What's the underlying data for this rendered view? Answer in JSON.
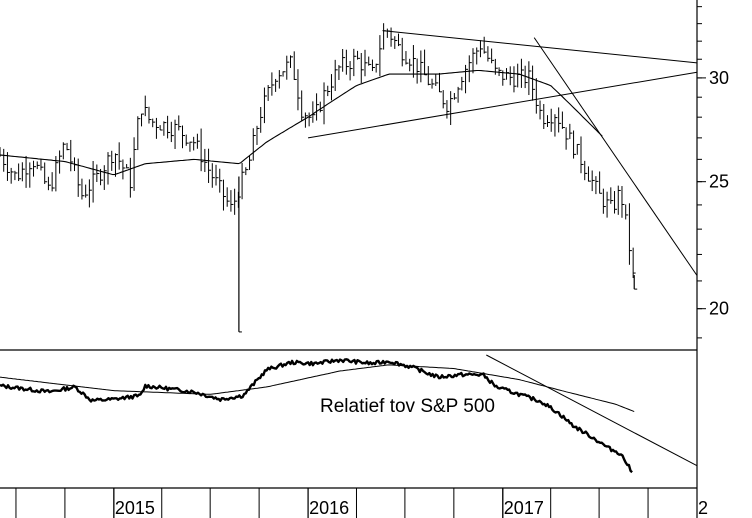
{
  "chart_data": [
    {
      "type": "ohlc",
      "panel": "price",
      "title": "",
      "y_scale": "log",
      "ylim": [
        18.6,
        34.4
      ],
      "xlim": [
        "2014-06-01",
        "2018-01-01"
      ],
      "grid": false,
      "y_ticks": [
        {
          "value": 20,
          "label": "20"
        },
        {
          "value": 25,
          "label": "25"
        },
        {
          "value": 30,
          "label": "30"
        }
      ],
      "x_ticks": [
        {
          "date": "2015-01-01",
          "label": "2015"
        },
        {
          "date": "2016-01-01",
          "label": "2016"
        },
        {
          "date": "2017-01-01",
          "label": "2017"
        },
        {
          "date": "2018-01-01",
          "label": "2"
        }
      ],
      "weekly_close_anchors": [
        [
          "2014-06-01",
          26.2
        ],
        [
          "2014-07-01",
          25.2
        ],
        [
          "2014-08-01",
          26.0
        ],
        [
          "2014-09-01",
          24.6
        ],
        [
          "2014-10-01",
          26.8
        ],
        [
          "2014-11-01",
          24.4
        ],
        [
          "2014-12-01",
          25.2
        ],
        [
          "2015-01-01",
          26.4
        ],
        [
          "2015-02-01",
          25.0
        ],
        [
          "2015-02-20",
          28.6
        ],
        [
          "2015-03-10",
          27.8
        ],
        [
          "2015-04-10",
          27.6
        ],
        [
          "2015-05-01",
          27.4
        ],
        [
          "2015-06-01",
          26.8
        ],
        [
          "2015-07-01",
          25.4
        ],
        [
          "2015-08-10",
          23.8
        ],
        [
          "2015-08-25",
          24.8
        ],
        [
          "2015-09-10",
          25.6
        ],
        [
          "2015-10-01",
          28.0
        ],
        [
          "2015-11-01",
          30.2
        ],
        [
          "2015-12-01",
          30.8
        ],
        [
          "2015-12-20",
          28.4
        ],
        [
          "2016-01-10",
          27.8
        ],
        [
          "2016-02-01",
          29.2
        ],
        [
          "2016-03-01",
          30.6
        ],
        [
          "2016-04-01",
          31.0
        ],
        [
          "2016-05-01",
          30.2
        ],
        [
          "2016-05-25",
          32.8
        ],
        [
          "2016-06-20",
          31.6
        ],
        [
          "2016-07-20",
          30.8
        ],
        [
          "2016-08-20",
          29.6
        ],
        [
          "2016-09-20",
          28.6
        ],
        [
          "2016-10-20",
          30.4
        ],
        [
          "2016-11-20",
          31.8
        ],
        [
          "2016-12-20",
          30.2
        ],
        [
          "2017-01-20",
          30.0
        ],
        [
          "2017-02-20",
          30.0
        ],
        [
          "2017-03-15",
          28.0
        ],
        [
          "2017-04-10",
          28.2
        ],
        [
          "2017-05-01",
          27.2
        ],
        [
          "2017-06-01",
          25.8
        ],
        [
          "2017-07-01",
          24.4
        ],
        [
          "2017-07-25",
          23.8
        ],
        [
          "2017-08-10",
          24.6
        ],
        [
          "2017-08-25",
          22.6
        ],
        [
          "2017-09-05",
          20.8
        ]
      ],
      "intraday_spike_lows": [
        {
          "date": "2015-08-24",
          "low": 19.2
        },
        {
          "date": "2017-09-05",
          "low": 20.7
        }
      ],
      "moving_average_anchors": [
        [
          "2014-06-01",
          26.2
        ],
        [
          "2014-10-01",
          25.9
        ],
        [
          "2015-01-01",
          25.3
        ],
        [
          "2015-03-01",
          25.8
        ],
        [
          "2015-06-01",
          26.0
        ],
        [
          "2015-08-25",
          25.8
        ],
        [
          "2015-10-15",
          26.8
        ],
        [
          "2016-01-01",
          28.0
        ],
        [
          "2016-04-01",
          29.6
        ],
        [
          "2016-06-01",
          30.2
        ],
        [
          "2016-09-01",
          30.2
        ],
        [
          "2016-11-15",
          30.4
        ],
        [
          "2017-02-01",
          30.2
        ],
        [
          "2017-04-01",
          29.6
        ],
        [
          "2017-06-01",
          28.0
        ],
        [
          "2017-07-10",
          27.0
        ]
      ],
      "trendlines": [
        {
          "from": [
            "2016-05-20",
            32.6
          ],
          "to": [
            "2018-01-01",
            30.8
          ]
        },
        {
          "from": [
            "2016-01-01",
            27.0
          ],
          "to": [
            "2018-01-01",
            30.3
          ]
        },
        {
          "from": [
            "2017-03-01",
            32.2
          ],
          "to": [
            "2018-01-01",
            21.2
          ]
        }
      ]
    },
    {
      "type": "line",
      "panel": "relative-strength",
      "annotation": "Relatief tov S&P 500",
      "ylim": [
        0,
        100
      ],
      "y_axis_labels": false,
      "series_anchors": [
        [
          "2014-06-01",
          75
        ],
        [
          "2014-09-01",
          70
        ],
        [
          "2014-10-20",
          74
        ],
        [
          "2014-11-20",
          63
        ],
        [
          "2015-01-01",
          64
        ],
        [
          "2015-02-20",
          67
        ],
        [
          "2015-03-01",
          75
        ],
        [
          "2015-06-01",
          70
        ],
        [
          "2015-07-20",
          64
        ],
        [
          "2015-09-01",
          67
        ],
        [
          "2015-10-15",
          88
        ],
        [
          "2015-12-01",
          94
        ],
        [
          "2016-01-15",
          93
        ],
        [
          "2016-03-01",
          96
        ],
        [
          "2016-05-01",
          93
        ],
        [
          "2016-06-01",
          95
        ],
        [
          "2016-07-15",
          90
        ],
        [
          "2016-09-01",
          82
        ],
        [
          "2016-10-15",
          84
        ],
        [
          "2016-11-25",
          84
        ],
        [
          "2016-12-20",
          74
        ],
        [
          "2017-02-01",
          68
        ],
        [
          "2017-03-15",
          62
        ],
        [
          "2017-04-15",
          53
        ],
        [
          "2017-05-15",
          42
        ],
        [
          "2017-06-15",
          34
        ],
        [
          "2017-07-20",
          24
        ],
        [
          "2017-08-10",
          20
        ],
        [
          "2017-08-25",
          10
        ],
        [
          "2017-09-01",
          4
        ]
      ],
      "moving_average_anchors": [
        [
          "2014-06-01",
          82
        ],
        [
          "2015-01-01",
          71
        ],
        [
          "2015-07-01",
          68
        ],
        [
          "2015-10-15",
          74
        ],
        [
          "2016-03-01",
          87
        ],
        [
          "2016-06-01",
          92
        ],
        [
          "2016-10-01",
          89
        ],
        [
          "2017-02-01",
          80
        ],
        [
          "2017-05-01",
          70
        ],
        [
          "2017-08-01",
          60
        ],
        [
          "2017-09-05",
          54
        ]
      ],
      "trendlines": [
        {
          "from": [
            "2016-12-01",
            100
          ],
          "to": [
            "2018-01-01",
            10
          ]
        }
      ]
    }
  ]
}
